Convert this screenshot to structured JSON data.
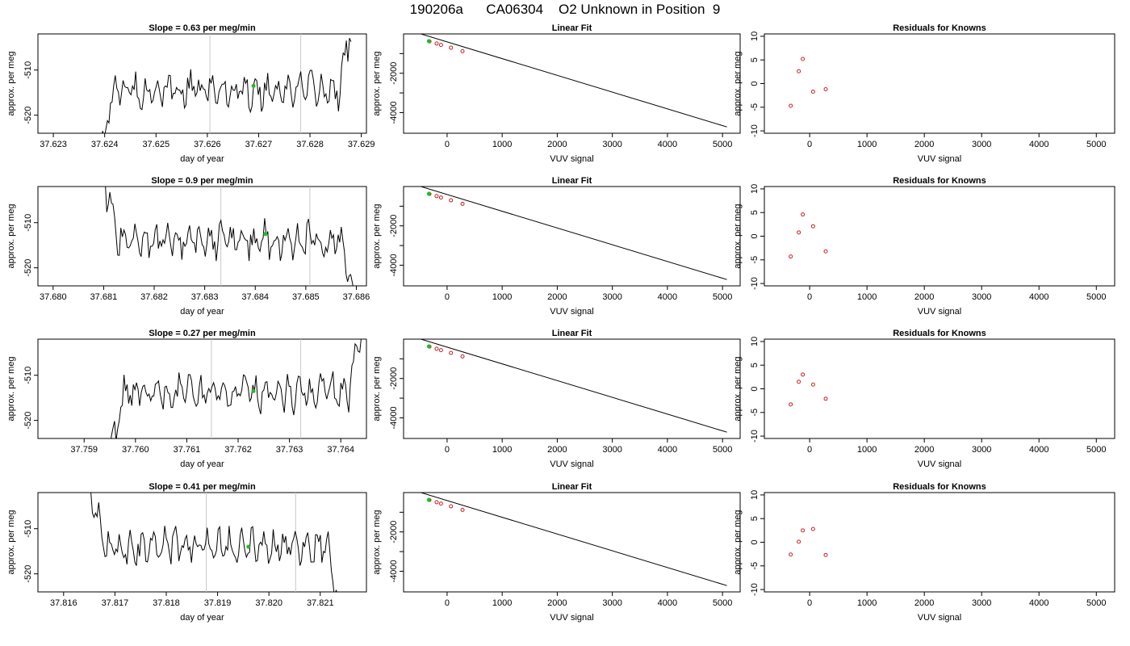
{
  "page": {
    "title": "190206a      CA06304    O2 Unknown in Position  9"
  },
  "colors": {
    "trace": "#000000",
    "marker_green": "#22bb22",
    "known_points": "#cc2222",
    "vertical_lines": "#c8c8c8"
  },
  "chart_data": [
    {
      "type": "line",
      "title": "Slope =  0.63  per meg/min",
      "xlabel": "day of year",
      "ylabel": "approx. per meg",
      "xlim": [
        37.6227,
        37.6291
      ],
      "ylim": [
        -524,
        -502
      ],
      "xticks": [
        "37.623",
        "37.624",
        "37.625",
        "37.626",
        "37.627",
        "37.628",
        "37.629"
      ],
      "xtick_values": [
        37.623,
        37.624,
        37.625,
        37.626,
        37.627,
        37.628,
        37.629
      ],
      "yticks": [
        "-510",
        "-520"
      ],
      "ytick_values": [
        -510,
        -520
      ],
      "vertical_lines": [
        37.62605,
        37.62782
      ],
      "trace_start": 37.6239,
      "trace_end": 37.6288,
      "trace_mean": -514.5,
      "green_point": [
        37.6269,
        -513.5
      ]
    },
    {
      "type": "scatter",
      "title": "Linear Fit",
      "xlabel": "VUV signal",
      "ylabel": "approx. per meg",
      "xlim": [
        -790,
        5320
      ],
      "ylim": [
        -5050,
        0
      ],
      "xticks": [
        "0",
        "1000",
        "2000",
        "3000",
        "4000",
        "5000"
      ],
      "xtick_values": [
        0,
        1000,
        2000,
        3000,
        4000,
        5000
      ],
      "yticks": [
        "-2000",
        "-4000"
      ],
      "ytick_values": [
        -2000,
        -4000
      ],
      "yticks_minor": [
        -1000,
        -3000
      ],
      "fit_line": [
        [
          -640,
          140
        ],
        [
          5080,
          -4730
        ]
      ],
      "known_points": [
        [
          -320,
          -380
        ],
        [
          -190,
          -490
        ],
        [
          -110,
          -560
        ],
        [
          70,
          -700
        ],
        [
          280,
          -880
        ]
      ],
      "green_point": [
        -330,
        -370
      ]
    },
    {
      "type": "scatter",
      "title": "Residuals for Knowns",
      "xlabel": "VUV signal",
      "ylabel": "approx. per meg",
      "xlim": [
        -790,
        5320
      ],
      "ylim": [
        -10.5,
        10.5
      ],
      "xticks": [
        "0",
        "1000",
        "2000",
        "3000",
        "4000",
        "5000"
      ],
      "xtick_values": [
        0,
        1000,
        2000,
        3000,
        4000,
        5000
      ],
      "yticks": [
        "-10",
        "-5",
        "0",
        "5",
        "10"
      ],
      "ytick_values": [
        -10,
        -5,
        0,
        5,
        10
      ],
      "points": [
        [
          -330,
          -4.7
        ],
        [
          -190,
          2.6
        ],
        [
          -120,
          5.2
        ],
        [
          60,
          -1.7
        ],
        [
          280,
          -1.2
        ]
      ]
    },
    {
      "type": "line",
      "title": "Slope =  0.9  per meg/min",
      "xlabel": "day of year",
      "ylabel": "approx. per meg",
      "xlim": [
        37.6797,
        37.6862
      ],
      "ylim": [
        -524,
        -502
      ],
      "xticks": [
        "37.680",
        "37.681",
        "37.682",
        "37.683",
        "37.684",
        "37.685",
        "37.686"
      ],
      "xtick_values": [
        37.68,
        37.681,
        37.682,
        37.683,
        37.684,
        37.685,
        37.686
      ],
      "yticks": [
        "-510",
        "-520"
      ],
      "ytick_values": [
        -510,
        -520
      ],
      "vertical_lines": [
        37.68332,
        37.68508
      ],
      "trace_start": 37.681,
      "trace_end": 37.68595,
      "trace_mean": -514.0,
      "green_point": [
        37.6842,
        -512.5
      ]
    },
    {
      "type": "scatter",
      "title": "Linear Fit",
      "xlabel": "VUV signal",
      "ylabel": "approx. per meg",
      "xlim": [
        -790,
        5320
      ],
      "ylim": [
        -5050,
        0
      ],
      "xticks": [
        "0",
        "1000",
        "2000",
        "3000",
        "4000",
        "5000"
      ],
      "xtick_values": [
        0,
        1000,
        2000,
        3000,
        4000,
        5000
      ],
      "yticks": [
        "-2000",
        "-4000"
      ],
      "ytick_values": [
        -2000,
        -4000
      ],
      "yticks_minor": [
        -1000,
        -3000
      ],
      "fit_line": [
        [
          -640,
          140
        ],
        [
          5080,
          -4730
        ]
      ],
      "known_points": [
        [
          -320,
          -380
        ],
        [
          -190,
          -490
        ],
        [
          -110,
          -560
        ],
        [
          70,
          -700
        ],
        [
          280,
          -880
        ]
      ],
      "green_point": [
        -330,
        -370
      ]
    },
    {
      "type": "scatter",
      "title": "Residuals for Knowns",
      "xlabel": "VUV signal",
      "ylabel": "approx. per meg",
      "xlim": [
        -790,
        5320
      ],
      "ylim": [
        -10.5,
        10.5
      ],
      "xticks": [
        "0",
        "1000",
        "2000",
        "3000",
        "4000",
        "5000"
      ],
      "xtick_values": [
        0,
        1000,
        2000,
        3000,
        4000,
        5000
      ],
      "yticks": [
        "-10",
        "-5",
        "0",
        "5",
        "10"
      ],
      "ytick_values": [
        -10,
        -5,
        0,
        5,
        10
      ],
      "points": [
        [
          -330,
          -4.3
        ],
        [
          -190,
          0.8
        ],
        [
          -120,
          4.6
        ],
        [
          60,
          2.1
        ],
        [
          280,
          -3.2
        ]
      ]
    },
    {
      "type": "line",
      "title": "Slope =  0.27  per meg/min",
      "xlabel": "day of year",
      "ylabel": "approx. per meg",
      "xlim": [
        37.7581,
        37.7645
      ],
      "ylim": [
        -524,
        -502
      ],
      "xticks": [
        "37.759",
        "37.760",
        "37.761",
        "37.762",
        "37.763",
        "37.764"
      ],
      "xtick_values": [
        37.759,
        37.76,
        37.761,
        37.762,
        37.763,
        37.764
      ],
      "yticks": [
        "-510",
        "-520"
      ],
      "ytick_values": [
        -510,
        -520
      ],
      "vertical_lines": [
        37.76148,
        37.76322
      ],
      "trace_start": 37.7595,
      "trace_end": 37.7644,
      "trace_mean": -514.0,
      "green_point": [
        37.7623,
        -513.5
      ]
    },
    {
      "type": "scatter",
      "title": "Linear Fit",
      "xlabel": "VUV signal",
      "ylabel": "approx. per meg",
      "xlim": [
        -790,
        5320
      ],
      "ylim": [
        -5050,
        0
      ],
      "xticks": [
        "0",
        "1000",
        "2000",
        "3000",
        "4000",
        "5000"
      ],
      "xtick_values": [
        0,
        1000,
        2000,
        3000,
        4000,
        5000
      ],
      "yticks": [
        "-2000",
        "-4000"
      ],
      "ytick_values": [
        -2000,
        -4000
      ],
      "yticks_minor": [
        -1000,
        -3000
      ],
      "fit_line": [
        [
          -640,
          140
        ],
        [
          5080,
          -4730
        ]
      ],
      "known_points": [
        [
          -320,
          -380
        ],
        [
          -190,
          -490
        ],
        [
          -110,
          -560
        ],
        [
          70,
          -700
        ],
        [
          280,
          -880
        ]
      ],
      "green_point": [
        -330,
        -370
      ]
    },
    {
      "type": "scatter",
      "title": "Residuals for Knowns",
      "xlabel": "VUV signal",
      "ylabel": "approx. per meg",
      "xlim": [
        -790,
        5320
      ],
      "ylim": [
        -10.5,
        10.5
      ],
      "xticks": [
        "0",
        "1000",
        "2000",
        "3000",
        "4000",
        "5000"
      ],
      "xtick_values": [
        0,
        1000,
        2000,
        3000,
        4000,
        5000
      ],
      "yticks": [
        "-10",
        "-5",
        "0",
        "5",
        "10"
      ],
      "ytick_values": [
        -10,
        -5,
        0,
        5,
        10
      ],
      "points": [
        [
          -330,
          -3.3
        ],
        [
          -190,
          1.5
        ],
        [
          -120,
          3.0
        ],
        [
          60,
          0.9
        ],
        [
          280,
          -2.1
        ]
      ]
    },
    {
      "type": "line",
      "title": "Slope =  0.41  per meg/min",
      "xlabel": "day of year",
      "ylabel": "approx. per meg",
      "xlim": [
        37.8155,
        37.8219
      ],
      "ylim": [
        -524,
        -502
      ],
      "xticks": [
        "37.816",
        "37.817",
        "37.818",
        "37.819",
        "37.820",
        "37.821"
      ],
      "xtick_values": [
        37.816,
        37.817,
        37.818,
        37.819,
        37.82,
        37.821
      ],
      "yticks": [
        "-510",
        "-520"
      ],
      "ytick_values": [
        -510,
        -520
      ],
      "vertical_lines": [
        37.81878,
        37.82052
      ],
      "trace_start": 37.8165,
      "trace_end": 37.8214,
      "trace_mean": -514.0,
      "green_point": [
        37.8196,
        -514.0
      ]
    },
    {
      "type": "scatter",
      "title": "Linear Fit",
      "xlabel": "VUV signal",
      "ylabel": "approx. per meg",
      "xlim": [
        -790,
        5320
      ],
      "ylim": [
        -5050,
        0
      ],
      "xticks": [
        "0",
        "1000",
        "2000",
        "3000",
        "4000",
        "5000"
      ],
      "xtick_values": [
        0,
        1000,
        2000,
        3000,
        4000,
        5000
      ],
      "yticks": [
        "-2000",
        "-4000"
      ],
      "ytick_values": [
        -2000,
        -4000
      ],
      "yticks_minor": [
        -1000,
        -3000
      ],
      "fit_line": [
        [
          -640,
          140
        ],
        [
          5080,
          -4730
        ]
      ],
      "known_points": [
        [
          -320,
          -380
        ],
        [
          -190,
          -490
        ],
        [
          -110,
          -560
        ],
        [
          70,
          -700
        ],
        [
          280,
          -880
        ]
      ],
      "green_point": [
        -330,
        -370
      ]
    },
    {
      "type": "scatter",
      "title": "Residuals for Knowns",
      "xlabel": "VUV signal",
      "ylabel": "approx. per meg",
      "xlim": [
        -790,
        5320
      ],
      "ylim": [
        -10.5,
        10.5
      ],
      "xticks": [
        "0",
        "1000",
        "2000",
        "3000",
        "4000",
        "5000"
      ],
      "xtick_values": [
        0,
        1000,
        2000,
        3000,
        4000,
        5000
      ],
      "yticks": [
        "-10",
        "-5",
        "0",
        "5",
        "10"
      ],
      "ytick_values": [
        -10,
        -5,
        0,
        5,
        10
      ],
      "points": [
        [
          -330,
          -2.6
        ],
        [
          -190,
          0.1
        ],
        [
          -120,
          2.5
        ],
        [
          60,
          2.8
        ],
        [
          280,
          -2.7
        ]
      ]
    }
  ]
}
